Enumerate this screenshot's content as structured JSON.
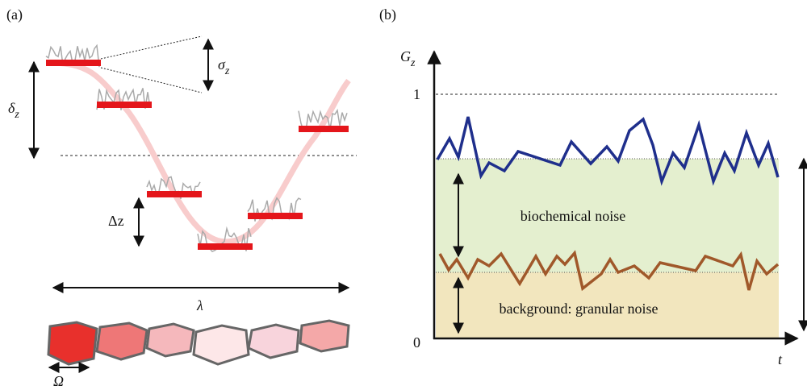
{
  "panel_a": {
    "label": "(a)",
    "sigma": {
      "symbol": "σ",
      "subscript": "z"
    },
    "delta": {
      "symbol": "δ",
      "subscript": "z"
    },
    "step": "Δz",
    "wavelength": "λ",
    "cell_size": "Ω"
  },
  "panel_b": {
    "label": "(b)",
    "y_axis": {
      "symbol": "G",
      "subscript": "z"
    },
    "x_axis": "t",
    "tick_top": "1",
    "tick_bottom": "0",
    "band_upper": "biochemical noise",
    "band_lower": "background: granular noise"
  }
}
